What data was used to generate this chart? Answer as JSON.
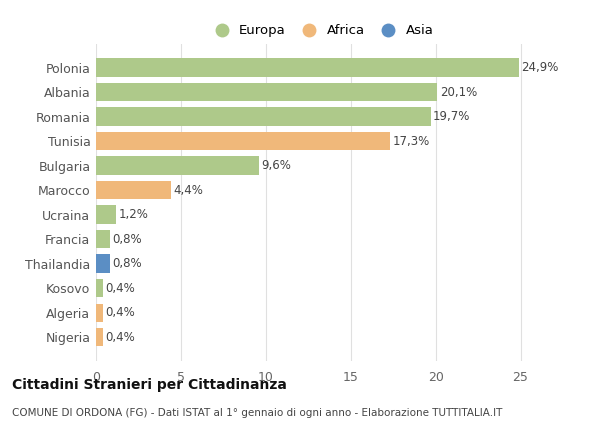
{
  "countries": [
    "Polonia",
    "Albania",
    "Romania",
    "Tunisia",
    "Bulgaria",
    "Marocco",
    "Ucraina",
    "Francia",
    "Thailandia",
    "Kosovo",
    "Algeria",
    "Nigeria"
  ],
  "values": [
    24.9,
    20.1,
    19.7,
    17.3,
    9.6,
    4.4,
    1.2,
    0.8,
    0.8,
    0.4,
    0.4,
    0.4
  ],
  "labels": [
    "24,9%",
    "20,1%",
    "19,7%",
    "17,3%",
    "9,6%",
    "4,4%",
    "1,2%",
    "0,8%",
    "0,8%",
    "0,4%",
    "0,4%",
    "0,4%"
  ],
  "continents": [
    "Europa",
    "Europa",
    "Europa",
    "Africa",
    "Europa",
    "Africa",
    "Europa",
    "Europa",
    "Asia",
    "Europa",
    "Africa",
    "Africa"
  ],
  "colors": {
    "Europa": "#aec98a",
    "Africa": "#f0b87a",
    "Asia": "#5b8ec4"
  },
  "xlim": [
    0,
    26.5
  ],
  "xticks": [
    0,
    5,
    10,
    15,
    20,
    25
  ],
  "title": "Cittadini Stranieri per Cittadinanza",
  "subtitle": "COMUNE DI ORDONA (FG) - Dati ISTAT al 1° gennaio di ogni anno - Elaborazione TUTTITALIA.IT",
  "background_color": "#ffffff",
  "grid_color": "#e0e0e0",
  "bar_height": 0.75
}
